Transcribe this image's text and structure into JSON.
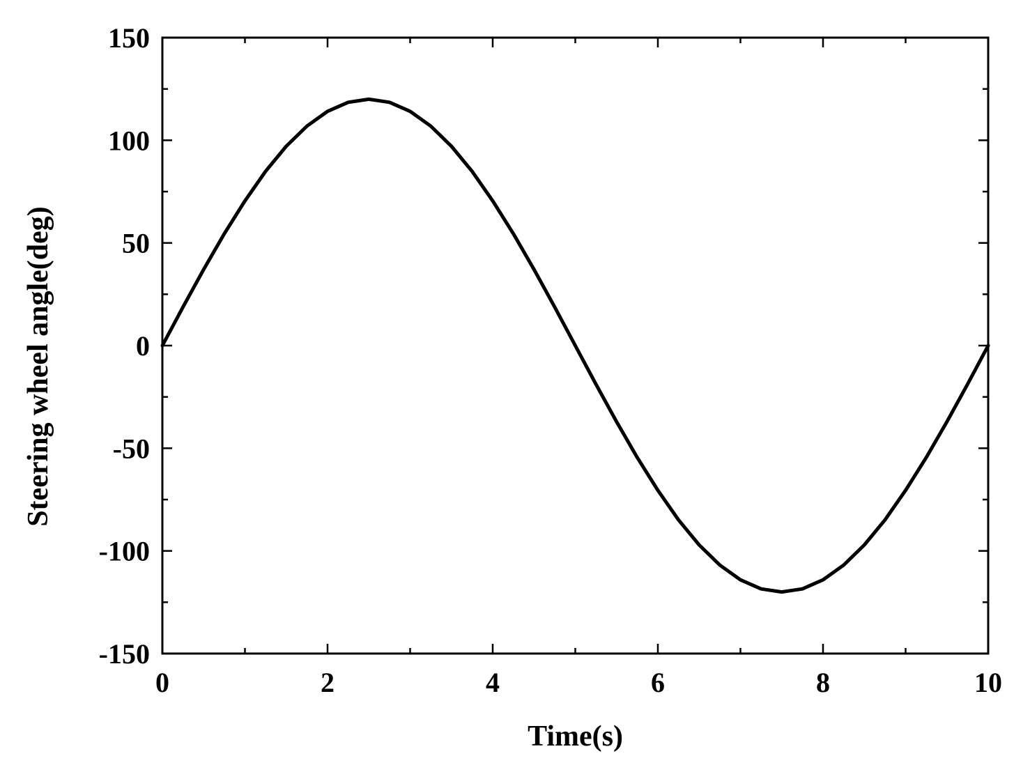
{
  "chart_data": {
    "type": "line",
    "title": "",
    "xlabel": "Time(s)",
    "ylabel": "Steering wheel angle(deg)",
    "xlim": [
      0,
      10
    ],
    "ylim": [
      -150,
      150
    ],
    "x_ticks": [
      0,
      2,
      4,
      6,
      8,
      10
    ],
    "x_tick_labels": [
      "0",
      "2",
      "4",
      "6",
      "8",
      "10"
    ],
    "y_ticks": [
      150,
      100,
      50,
      0,
      -50,
      -100,
      -150
    ],
    "y_tick_labels": [
      "150",
      "100",
      "50",
      "0",
      "-50",
      "-100",
      "-150"
    ],
    "x_minor_step": 1,
    "y_minor_step": 25,
    "grid": false,
    "legend": "none",
    "series": [
      {
        "color": "#000000",
        "x": [
          0,
          0.25,
          0.5,
          0.75,
          1,
          1.25,
          1.5,
          1.75,
          2,
          2.25,
          2.5,
          2.75,
          3,
          3.25,
          3.5,
          3.75,
          4,
          4.25,
          4.5,
          4.75,
          5,
          5.25,
          5.5,
          5.75,
          6,
          6.25,
          6.5,
          6.75,
          7,
          7.25,
          7.5,
          7.75,
          8,
          8.25,
          8.5,
          8.75,
          9,
          9.25,
          9.5,
          9.75,
          10
        ],
        "y": [
          0,
          18.8,
          37.1,
          54.5,
          70.5,
          84.9,
          97.1,
          106.9,
          114.1,
          118.5,
          120,
          118.5,
          114.1,
          106.9,
          97.1,
          84.9,
          70.5,
          54.5,
          37.1,
          18.8,
          0,
          -18.8,
          -37.1,
          -54.5,
          -70.5,
          -84.9,
          -97.1,
          -106.9,
          -114.1,
          -118.5,
          -120,
          -118.5,
          -114.1,
          -106.9,
          -97.1,
          -84.9,
          -70.5,
          -54.5,
          -37.1,
          -18.8,
          0
        ]
      }
    ]
  }
}
